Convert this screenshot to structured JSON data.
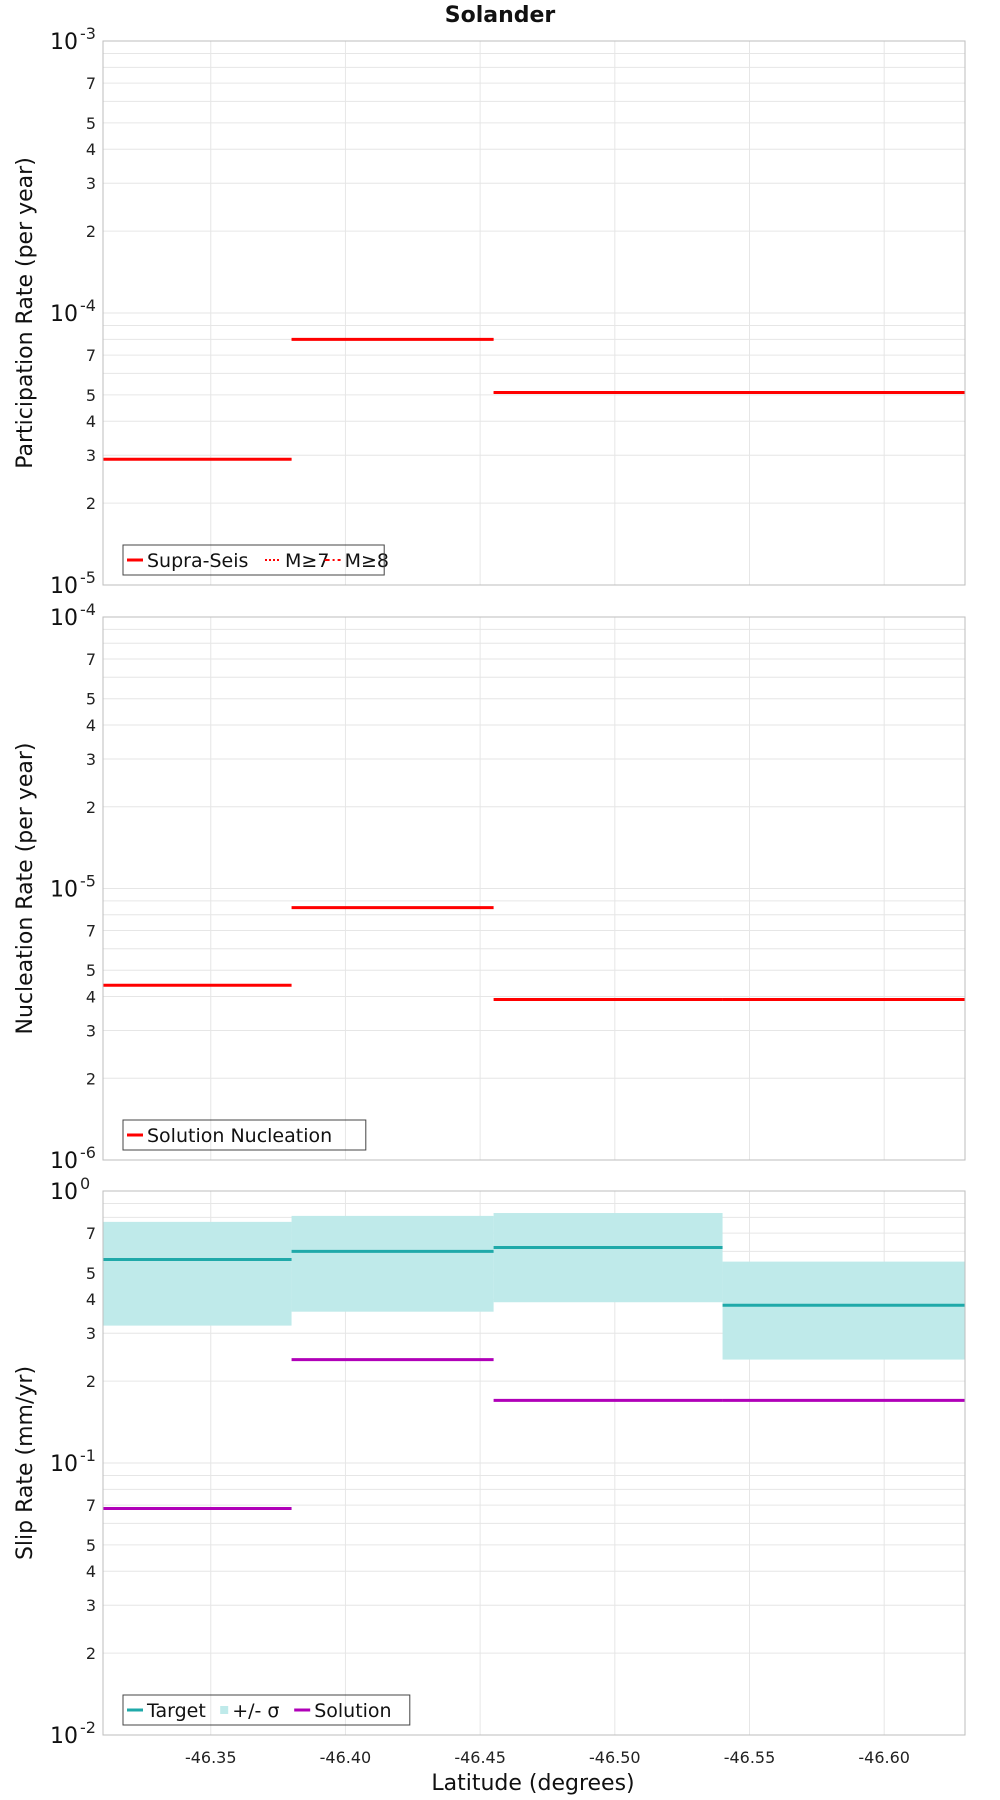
{
  "title": "Solander",
  "xlabel": "Latitude (degrees)",
  "chart_data": [
    {
      "type": "line",
      "title": "Solander",
      "xlabel": "Latitude (degrees)",
      "ylabel": "Participation Rate (per year)",
      "yscale": "log",
      "ylim": [
        1e-05,
        0.001
      ],
      "xlim": [
        -46.31,
        -46.63
      ],
      "x_ticks": [
        -46.35,
        -46.4,
        -46.45,
        -46.5,
        -46.55,
        -46.6
      ],
      "x_tick_labels": [
        "-46.35",
        "-46.40",
        "-46.45",
        "-46.50",
        "-46.55",
        "-46.60"
      ],
      "grid": true,
      "legend_position": "bottom-left",
      "legend": [
        "Supra-Seis",
        "M≥7",
        "M≥8"
      ],
      "series": [
        {
          "name": "Supra-Seis",
          "color": "#ff0000",
          "style": "solid",
          "segments": [
            {
              "x0": -46.31,
              "x1": -46.38,
              "y": 2.9e-05
            },
            {
              "x0": -46.38,
              "x1": -46.455,
              "y": 8e-05
            },
            {
              "x0": -46.455,
              "x1": -46.63,
              "y": 5.1e-05
            }
          ]
        },
        {
          "name": "M≥7",
          "color": "#ff0000",
          "style": "dotted",
          "segments": [
            {
              "x0": -46.31,
              "x1": -46.38,
              "y": 2.9e-05
            },
            {
              "x0": -46.38,
              "x1": -46.455,
              "y": 8e-05
            },
            {
              "x0": -46.455,
              "x1": -46.63,
              "y": 5.1e-05
            }
          ]
        }
      ]
    },
    {
      "type": "line",
      "ylabel": "Nucleation Rate (per year)",
      "yscale": "log",
      "ylim": [
        1e-06,
        0.0001
      ],
      "xlim": [
        -46.31,
        -46.63
      ],
      "grid": true,
      "legend_position": "bottom-left",
      "legend": [
        "Solution Nucleation"
      ],
      "series": [
        {
          "name": "Solution Nucleation",
          "color": "#ff0000",
          "style": "solid",
          "segments": [
            {
              "x0": -46.31,
              "x1": -46.38,
              "y": 4.4e-06
            },
            {
              "x0": -46.38,
              "x1": -46.455,
              "y": 8.5e-06
            },
            {
              "x0": -46.455,
              "x1": -46.54,
              "y": 3.9e-06
            },
            {
              "x0": -46.54,
              "x1": -46.63,
              "y": 3.9e-06
            }
          ]
        }
      ]
    },
    {
      "type": "area",
      "ylabel": "Slip Rate (mm/yr)",
      "xlabel": "Latitude (degrees)",
      "yscale": "log",
      "ylim": [
        0.01,
        1
      ],
      "xlim": [
        -46.31,
        -46.63
      ],
      "grid": true,
      "legend_position": "bottom-left",
      "legend": [
        "Target",
        "+/- σ",
        "Solution"
      ],
      "series": [
        {
          "name": "Target",
          "color": "#1fa9a9",
          "style": "solid",
          "segments": [
            {
              "x0": -46.31,
              "x1": -46.38,
              "y": 0.56
            },
            {
              "x0": -46.38,
              "x1": -46.455,
              "y": 0.6
            },
            {
              "x0": -46.455,
              "x1": -46.54,
              "y": 0.62
            },
            {
              "x0": -46.54,
              "x1": -46.63,
              "y": 0.38
            }
          ]
        },
        {
          "name": "+/- σ",
          "color": "#bfeaea",
          "style": "band",
          "segments": [
            {
              "x0": -46.31,
              "x1": -46.38,
              "lo": 0.32,
              "hi": 0.77
            },
            {
              "x0": -46.38,
              "x1": -46.455,
              "lo": 0.36,
              "hi": 0.81
            },
            {
              "x0": -46.455,
              "x1": -46.54,
              "lo": 0.39,
              "hi": 0.83
            },
            {
              "x0": -46.54,
              "x1": -46.63,
              "lo": 0.24,
              "hi": 0.55
            }
          ]
        },
        {
          "name": "Solution",
          "color": "#b000b8",
          "style": "solid",
          "segments": [
            {
              "x0": -46.31,
              "x1": -46.38,
              "y": 0.068
            },
            {
              "x0": -46.38,
              "x1": -46.455,
              "y": 0.24
            },
            {
              "x0": -46.455,
              "x1": -46.54,
              "y": 0.17
            },
            {
              "x0": -46.54,
              "x1": -46.63,
              "y": 0.17
            }
          ]
        }
      ]
    }
  ]
}
